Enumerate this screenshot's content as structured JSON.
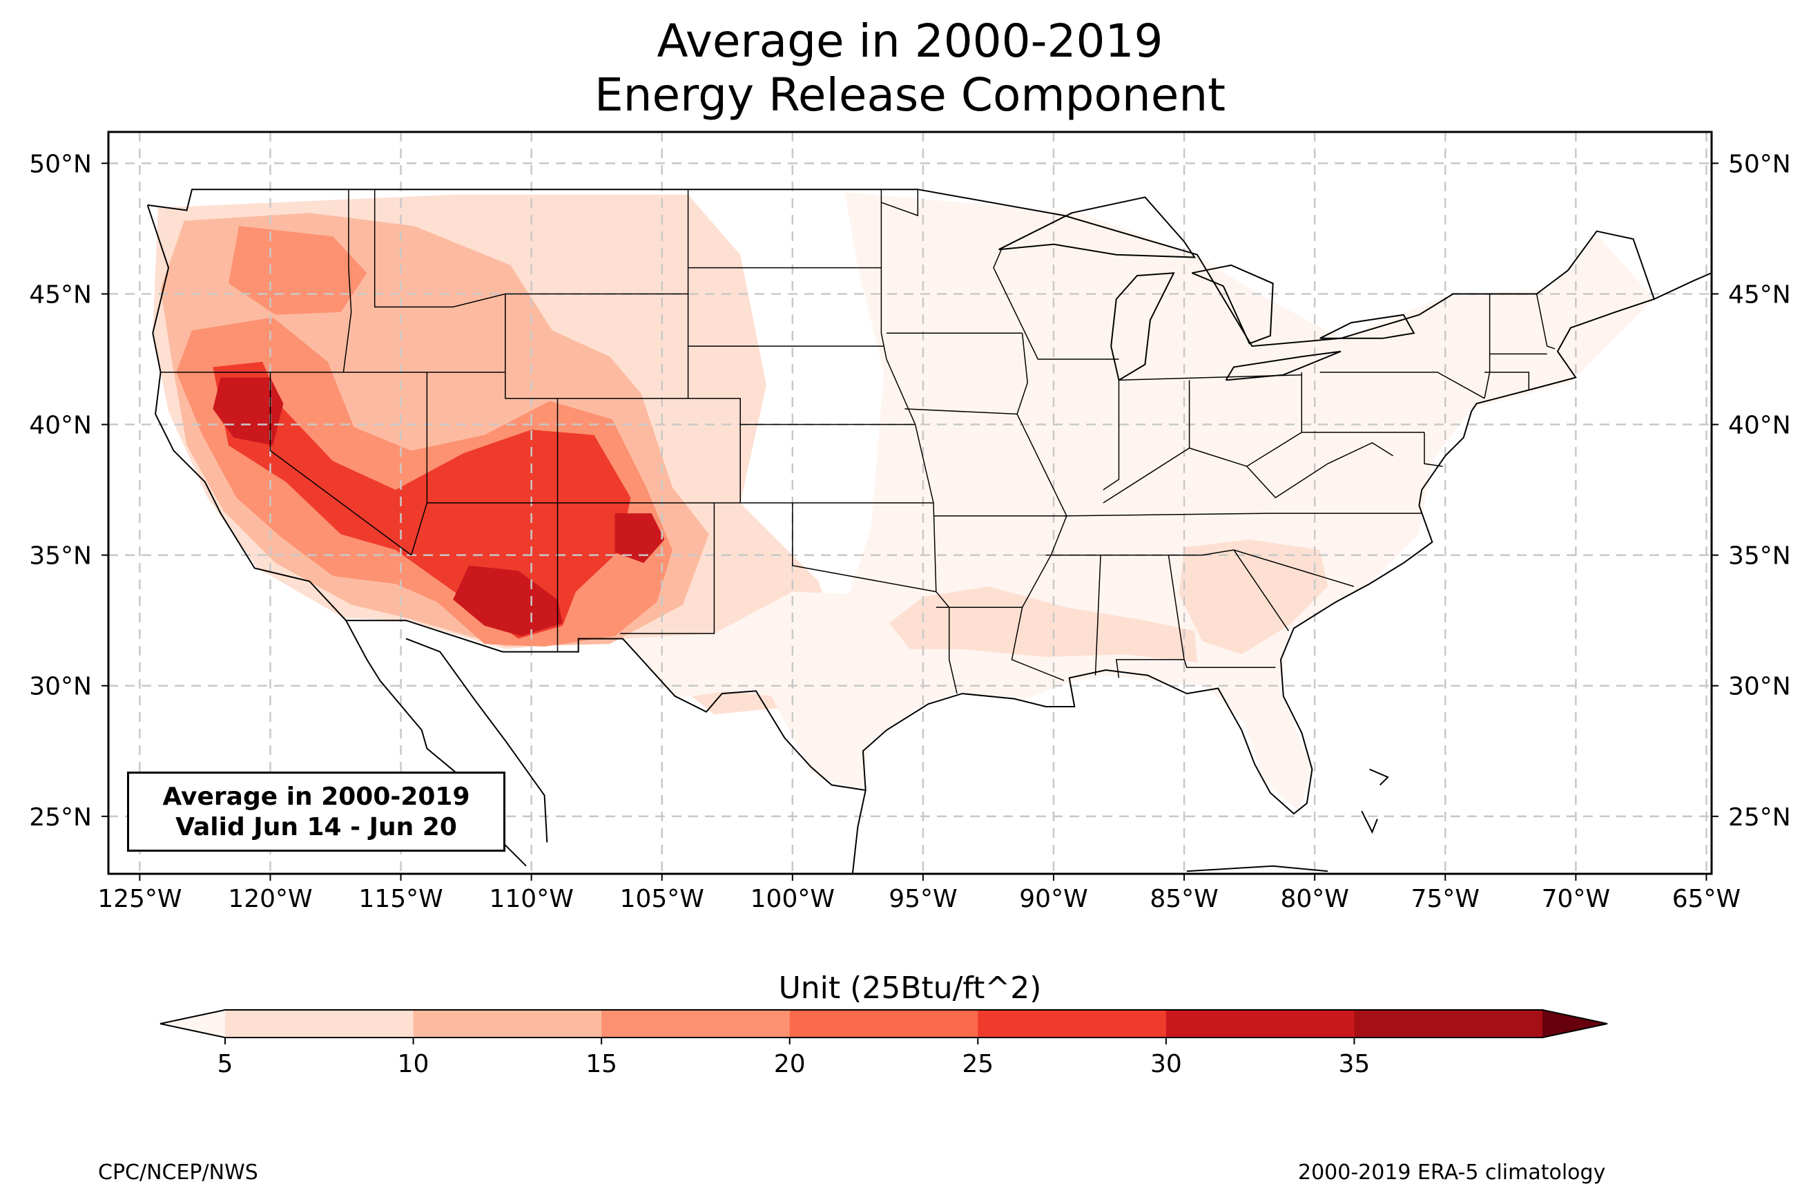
{
  "title": [
    "Average in 2000-2019",
    "Energy Release Component"
  ],
  "map": {
    "lon_range": [
      -126.2,
      -64.8
    ],
    "lat_range": [
      22.8,
      51.2
    ],
    "lon_ticks": [
      -125,
      -120,
      -115,
      -110,
      -105,
      -100,
      -95,
      -90,
      -85,
      -80,
      -75,
      -70,
      -65
    ],
    "lon_tick_labels": [
      "125°W",
      "120°W",
      "115°W",
      "110°W",
      "105°W",
      "100°W",
      "95°W",
      "90°W",
      "85°W",
      "80°W",
      "75°W",
      "70°W",
      "65°W"
    ],
    "lat_ticks": [
      25,
      30,
      35,
      40,
      45,
      50
    ],
    "lat_tick_labels": [
      "25°N",
      "30°N",
      "35°N",
      "40°N",
      "45°N",
      "50°N"
    ],
    "gridlines": true,
    "field_name": "Energy Release Component",
    "fill_regions": [
      {
        "name": "west-light-field",
        "level": 1,
        "points": [
          [
            -124.3,
            48.3
          ],
          [
            -113,
            48.8
          ],
          [
            -104,
            48.8
          ],
          [
            -102,
            46.5
          ],
          [
            -101,
            41.5
          ],
          [
            -102,
            37
          ],
          [
            -99,
            34
          ],
          [
            -98,
            30.8
          ],
          [
            -100,
            29.2
          ],
          [
            -103,
            28.9
          ],
          [
            -106.6,
            31.8
          ],
          [
            -111,
            31.4
          ],
          [
            -114.8,
            32.5
          ],
          [
            -117.2,
            32.6
          ],
          [
            -120.5,
            34.5
          ],
          [
            -122.4,
            37.2
          ],
          [
            -123.9,
            40.5
          ],
          [
            -124.5,
            43.5
          ]
        ]
      },
      {
        "name": "east-light-field",
        "level": 0,
        "points": [
          [
            -98,
            48.9
          ],
          [
            -89,
            48.1
          ],
          [
            -84.5,
            46.5
          ],
          [
            -82.5,
            45.2
          ],
          [
            -79,
            43.3
          ],
          [
            -75,
            44.9
          ],
          [
            -71,
            45.2
          ],
          [
            -69.2,
            47.3
          ],
          [
            -67,
            44.8
          ],
          [
            -70.2,
            41.6
          ],
          [
            -74,
            40.6
          ],
          [
            -75.5,
            38.6
          ],
          [
            -76,
            35.8
          ],
          [
            -77.9,
            33.9
          ],
          [
            -81,
            32.1
          ],
          [
            -81.3,
            29.8
          ],
          [
            -80.1,
            26.8
          ],
          [
            -80.6,
            25.2
          ],
          [
            -81.9,
            26.3
          ],
          [
            -82.7,
            28.6
          ],
          [
            -84.2,
            30
          ],
          [
            -85.6,
            30.1
          ],
          [
            -88,
            30.4
          ],
          [
            -89.5,
            30.1
          ],
          [
            -91,
            29.5
          ],
          [
            -93.8,
            29.7
          ],
          [
            -95,
            29.3
          ],
          [
            -97.1,
            27.8
          ],
          [
            -97.3,
            26
          ],
          [
            -99.1,
            26.5
          ],
          [
            -99.5,
            29.6
          ],
          [
            -98,
            33
          ],
          [
            -97,
            36
          ],
          [
            -96.5,
            42
          ],
          [
            -97.5,
            46
          ]
        ]
      },
      {
        "name": "texas-field",
        "level": 0,
        "points": [
          [
            -103,
            32
          ],
          [
            -100,
            33.6
          ],
          [
            -97.3,
            33.5
          ],
          [
            -97,
            30.5
          ],
          [
            -97.6,
            27.5
          ],
          [
            -97.3,
            26
          ],
          [
            -99.3,
            26.7
          ],
          [
            -100.8,
            29.6
          ],
          [
            -102.5,
            29.8
          ],
          [
            -104.5,
            29.5
          ],
          [
            -106.5,
            31.8
          ]
        ]
      },
      {
        "name": "gulf-coast-patch",
        "level": 1,
        "points": [
          [
            -95,
            33.4
          ],
          [
            -92.5,
            33.8
          ],
          [
            -89.5,
            33
          ],
          [
            -86.5,
            32.5
          ],
          [
            -84.6,
            32.1
          ],
          [
            -84.5,
            30.9
          ],
          [
            -87.3,
            31.2
          ],
          [
            -90.3,
            31.1
          ],
          [
            -93.5,
            31.4
          ],
          [
            -95.5,
            31.4
          ],
          [
            -96.3,
            32.4
          ]
        ]
      },
      {
        "name": "southeast-patch",
        "level": 1,
        "points": [
          [
            -85,
            35.3
          ],
          [
            -82.5,
            35.6
          ],
          [
            -79.8,
            35.2
          ],
          [
            -79.5,
            33.8
          ],
          [
            -81,
            32.3
          ],
          [
            -82.8,
            31.2
          ],
          [
            -84.3,
            31.7
          ],
          [
            -85.2,
            33.5
          ]
        ]
      },
      {
        "name": "west-mid-field",
        "level": 2,
        "points": [
          [
            -123.3,
            47.8
          ],
          [
            -118.5,
            48.1
          ],
          [
            -114.5,
            47.6
          ],
          [
            -110.8,
            46.1
          ],
          [
            -109.2,
            43.6
          ],
          [
            -107,
            42.6
          ],
          [
            -105.8,
            41.2
          ],
          [
            -104.6,
            37.6
          ],
          [
            -103.2,
            35.8
          ],
          [
            -104.2,
            33.1
          ],
          [
            -107,
            31.6
          ],
          [
            -111,
            31.5
          ],
          [
            -114.8,
            32.6
          ],
          [
            -116.9,
            33.1
          ],
          [
            -119.8,
            34.7
          ],
          [
            -121.8,
            36.7
          ],
          [
            -123.2,
            39.2
          ],
          [
            -123.8,
            42.6
          ],
          [
            -124.2,
            45.2
          ]
        ]
      },
      {
        "name": "oregon-patch",
        "level": 3,
        "points": [
          [
            -121.2,
            47.6
          ],
          [
            -117.6,
            47.2
          ],
          [
            -116.3,
            45.8
          ],
          [
            -117.3,
            44.3
          ],
          [
            -119.8,
            44.2
          ],
          [
            -121.6,
            45.4
          ]
        ]
      },
      {
        "name": "west-high-field",
        "level": 3,
        "points": [
          [
            -123,
            43.6
          ],
          [
            -119.9,
            44.1
          ],
          [
            -117.8,
            42.4
          ],
          [
            -116.8,
            39.9
          ],
          [
            -114.6,
            39
          ],
          [
            -111.8,
            39.6
          ],
          [
            -109.3,
            40.9
          ],
          [
            -106.9,
            40.2
          ],
          [
            -105.6,
            37.6
          ],
          [
            -104.6,
            35.2
          ],
          [
            -105.2,
            33.2
          ],
          [
            -106.8,
            31.9
          ],
          [
            -109.5,
            31.5
          ],
          [
            -111.8,
            31.6
          ],
          [
            -113.6,
            33.2
          ],
          [
            -115.2,
            33.9
          ],
          [
            -117.6,
            34.2
          ],
          [
            -119.6,
            35.7
          ],
          [
            -121.3,
            37.2
          ],
          [
            -122.6,
            39.6
          ],
          [
            -123.6,
            42
          ]
        ]
      },
      {
        "name": "west-severe-field",
        "level": 5,
        "points": [
          [
            -122.2,
            42.2
          ],
          [
            -120.3,
            42.4
          ],
          [
            -119.5,
            40.6
          ],
          [
            -117.6,
            38.6
          ],
          [
            -115.2,
            37.5
          ],
          [
            -112.6,
            38.9
          ],
          [
            -110,
            39.8
          ],
          [
            -107.6,
            39.6
          ],
          [
            -106.2,
            37.2
          ],
          [
            -106.6,
            35.2
          ],
          [
            -108.3,
            33.6
          ],
          [
            -108.8,
            32.3
          ],
          [
            -110.5,
            31.8
          ],
          [
            -112.4,
            33.2
          ],
          [
            -115.2,
            35.2
          ],
          [
            -117.3,
            35.8
          ],
          [
            -119.4,
            37.8
          ],
          [
            -121.6,
            39.2
          ]
        ]
      },
      {
        "name": "norcal-core",
        "level": 6,
        "points": [
          [
            -121.9,
            41.8
          ],
          [
            -120,
            41.8
          ],
          [
            -119.5,
            40.8
          ],
          [
            -119.9,
            39.2
          ],
          [
            -121.4,
            39.5
          ],
          [
            -122.2,
            40.6
          ]
        ]
      },
      {
        "name": "arizona-core",
        "level": 6,
        "points": [
          [
            -112.4,
            34.6
          ],
          [
            -110.5,
            34.4
          ],
          [
            -109,
            33.3
          ],
          [
            -108.8,
            32.4
          ],
          [
            -110.4,
            31.9
          ],
          [
            -111.8,
            32.3
          ],
          [
            -113,
            33.3
          ]
        ]
      },
      {
        "name": "nmex-core",
        "level": 6,
        "points": [
          [
            -106.8,
            36.6
          ],
          [
            -105.4,
            36.6
          ],
          [
            -104.9,
            35.6
          ],
          [
            -105.7,
            34.7
          ],
          [
            -106.8,
            35.1
          ]
        ]
      }
    ]
  },
  "info_box": [
    "Average in 2000-2019",
    "Valid Jun 14 - Jun 20"
  ],
  "colorbar": {
    "title": "Unit (25Btu/ft^2)",
    "ticks": [
      5,
      10,
      15,
      20,
      25,
      30,
      35
    ],
    "tick_labels": [
      "5",
      "10",
      "15",
      "20",
      "25",
      "30",
      "35"
    ],
    "colors": [
      "#fee0d2",
      "#fcbba1",
      "#fc9272",
      "#fb6a4a",
      "#ef3b2c",
      "#cb181d",
      "#a50f15"
    ],
    "under_color": "#fff5f0",
    "over_color": "#67000d",
    "extend": "both"
  },
  "footer": {
    "left": "CPC/NCEP/NWS",
    "right": "2000-2019 ERA-5 climatology"
  }
}
